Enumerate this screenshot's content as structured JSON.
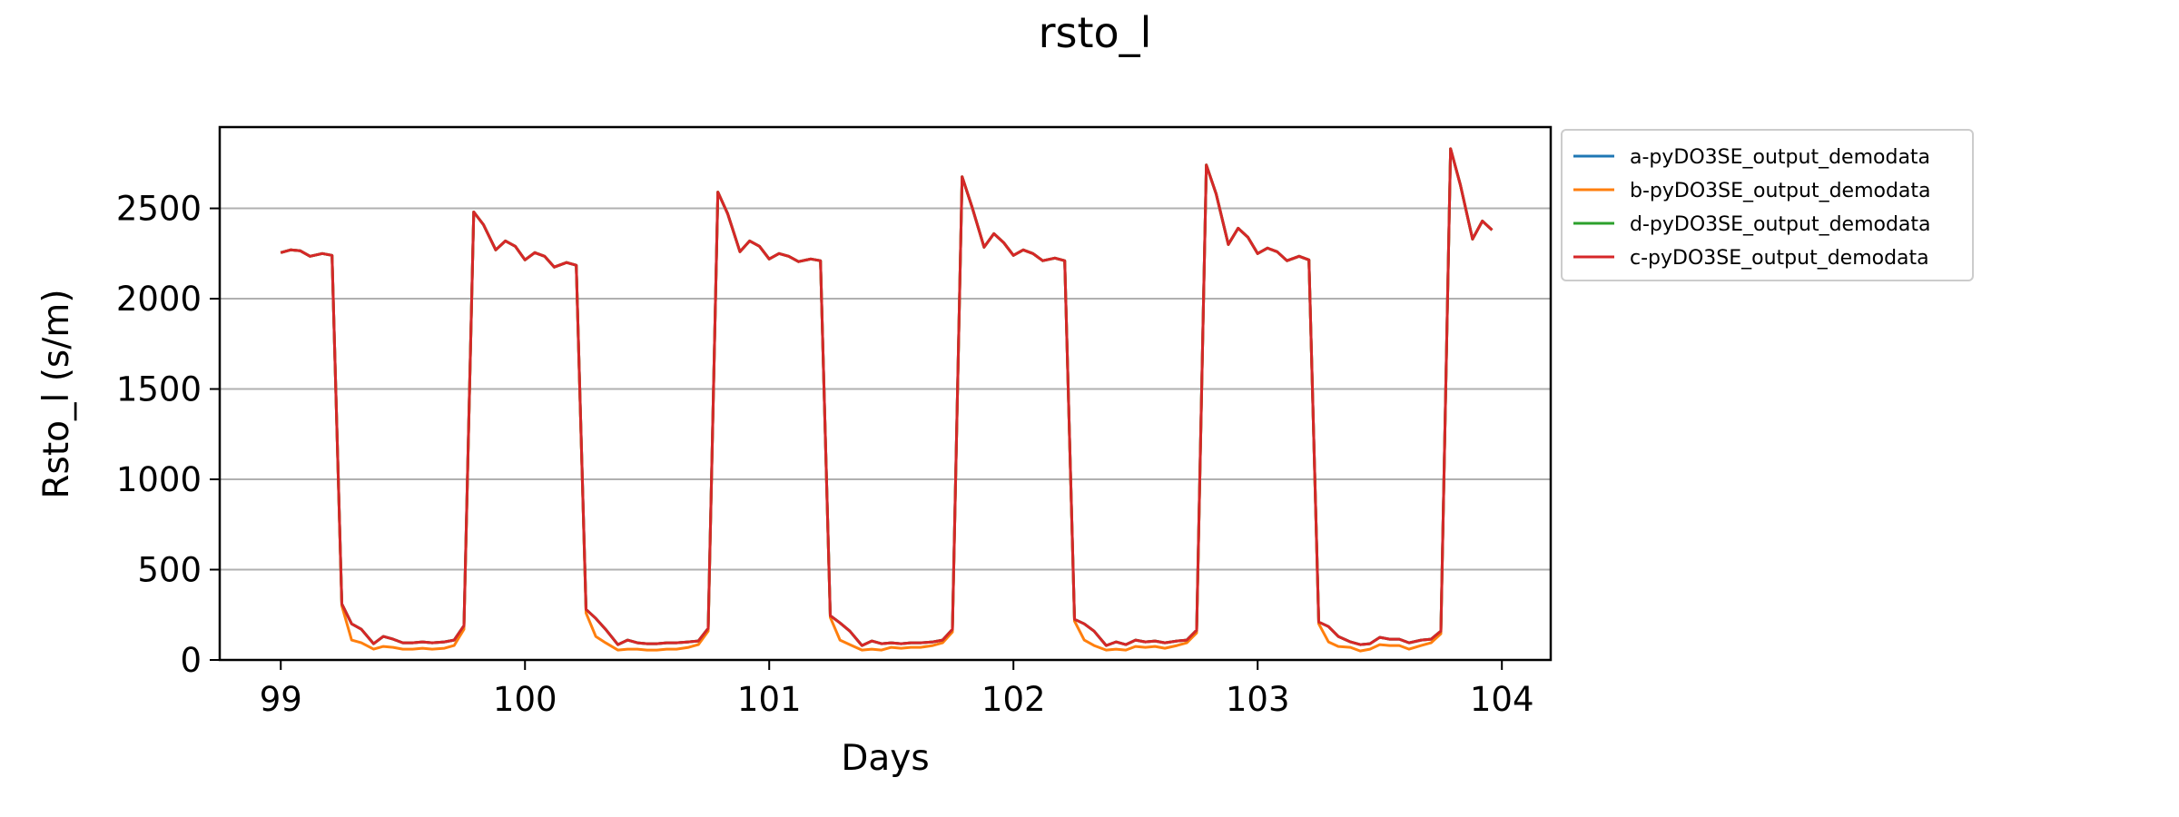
{
  "chart_data": {
    "type": "line",
    "title": "rsto_l",
    "xlabel": "Days",
    "ylabel": "Rsto_l (s/m)",
    "xlim": [
      98.75,
      104.2
    ],
    "ylim": [
      0,
      2950
    ],
    "xticks": [
      99,
      100,
      101,
      102,
      103,
      104
    ],
    "yticks": [
      0,
      500,
      1000,
      1500,
      2000,
      2500
    ],
    "grid": "horizontal",
    "legend_position": "outside-right-top",
    "series": [
      {
        "name": "a-pyDO3SE_output_demodata",
        "color": "#1f77b4",
        "x": [
          99.0,
          99.04,
          99.08,
          99.12,
          99.17,
          99.21,
          99.25,
          99.29,
          99.33,
          99.38,
          99.42,
          99.46,
          99.5,
          99.54,
          99.58,
          99.62,
          99.67,
          99.71,
          99.75,
          99.79,
          99.83,
          99.88,
          99.92,
          99.96,
          100.0,
          100.04,
          100.08,
          100.12,
          100.17,
          100.21,
          100.25,
          100.29,
          100.33,
          100.38,
          100.42,
          100.46,
          100.5,
          100.54,
          100.58,
          100.62,
          100.67,
          100.71,
          100.75,
          100.79,
          100.83,
          100.88,
          100.92,
          100.96,
          101.0,
          101.04,
          101.08,
          101.12,
          101.17,
          101.21,
          101.25,
          101.29,
          101.33,
          101.38,
          101.42,
          101.46,
          101.5,
          101.54,
          101.58,
          101.62,
          101.67,
          101.71,
          101.75,
          101.79,
          101.83,
          101.88,
          101.92,
          101.96,
          102.0,
          102.04,
          102.08,
          102.12,
          102.17,
          102.21,
          102.25,
          102.29,
          102.33,
          102.38,
          102.42,
          102.46,
          102.5,
          102.54,
          102.58,
          102.62,
          102.67,
          102.71,
          102.75,
          102.79,
          102.83,
          102.88,
          102.92,
          102.96,
          103.0,
          103.04,
          103.08,
          103.12,
          103.17,
          103.21,
          103.25,
          103.29,
          103.33,
          103.38,
          103.42,
          103.46,
          103.5,
          103.54,
          103.58,
          103.62,
          103.67,
          103.71,
          103.75,
          103.79,
          103.83,
          103.88,
          103.92,
          103.96
        ],
        "y": [
          2255,
          2270,
          2265,
          2235,
          2250,
          2240,
          310,
          200,
          170,
          90,
          130,
          115,
          95,
          95,
          100,
          95,
          100,
          110,
          190,
          2480,
          2410,
          2270,
          2320,
          2290,
          2215,
          2255,
          2235,
          2175,
          2200,
          2185,
          280,
          230,
          170,
          85,
          110,
          95,
          90,
          90,
          95,
          95,
          100,
          105,
          175,
          2590,
          2470,
          2260,
          2320,
          2290,
          2220,
          2250,
          2235,
          2205,
          2220,
          2210,
          245,
          205,
          160,
          80,
          105,
          90,
          95,
          90,
          95,
          95,
          100,
          110,
          170,
          2675,
          2510,
          2285,
          2360,
          2310,
          2240,
          2270,
          2250,
          2210,
          2225,
          2210,
          225,
          200,
          160,
          80,
          100,
          85,
          110,
          100,
          105,
          95,
          105,
          110,
          165,
          2740,
          2580,
          2300,
          2390,
          2340,
          2250,
          2280,
          2260,
          2210,
          2235,
          2215,
          210,
          185,
          130,
          100,
          85,
          90,
          125,
          115,
          115,
          95,
          110,
          115,
          160,
          2830,
          2630,
          2330,
          2430,
          2380
        ]
      },
      {
        "name": "b-pyDO3SE_output_demodata",
        "color": "#ff7f0e",
        "x": [
          99.0,
          99.04,
          99.08,
          99.12,
          99.17,
          99.21,
          99.25,
          99.29,
          99.33,
          99.38,
          99.42,
          99.46,
          99.5,
          99.54,
          99.58,
          99.62,
          99.67,
          99.71,
          99.75,
          99.79,
          99.83,
          99.88,
          99.92,
          99.96,
          100.0,
          100.04,
          100.08,
          100.12,
          100.17,
          100.21,
          100.25,
          100.29,
          100.33,
          100.38,
          100.42,
          100.46,
          100.5,
          100.54,
          100.58,
          100.62,
          100.67,
          100.71,
          100.75,
          100.79,
          100.83,
          100.88,
          100.92,
          100.96,
          101.0,
          101.04,
          101.08,
          101.12,
          101.17,
          101.21,
          101.25,
          101.29,
          101.33,
          101.38,
          101.42,
          101.46,
          101.5,
          101.54,
          101.58,
          101.62,
          101.67,
          101.71,
          101.75,
          101.79,
          101.83,
          101.88,
          101.92,
          101.96,
          102.0,
          102.04,
          102.08,
          102.12,
          102.17,
          102.21,
          102.25,
          102.29,
          102.33,
          102.38,
          102.42,
          102.46,
          102.5,
          102.54,
          102.58,
          102.62,
          102.67,
          102.71,
          102.75,
          102.79,
          102.83,
          102.88,
          102.92,
          102.96,
          103.0,
          103.04,
          103.08,
          103.12,
          103.17,
          103.21,
          103.25,
          103.29,
          103.33,
          103.38,
          103.42,
          103.46,
          103.5,
          103.54,
          103.58,
          103.62,
          103.67,
          103.71,
          103.75,
          103.79,
          103.83,
          103.88,
          103.92,
          103.96
        ],
        "y": [
          2255,
          2270,
          2265,
          2235,
          2250,
          2240,
          300,
          110,
          95,
          60,
          75,
          70,
          60,
          60,
          65,
          60,
          65,
          80,
          170,
          2480,
          2410,
          2270,
          2320,
          2290,
          2215,
          2255,
          2235,
          2175,
          2200,
          2185,
          260,
          130,
          95,
          55,
          60,
          60,
          55,
          55,
          60,
          60,
          70,
          85,
          160,
          2590,
          2470,
          2260,
          2320,
          2290,
          2220,
          2250,
          2235,
          2205,
          2220,
          2210,
          235,
          110,
          85,
          55,
          60,
          55,
          70,
          65,
          70,
          70,
          80,
          95,
          155,
          2675,
          2510,
          2285,
          2360,
          2310,
          2240,
          2270,
          2250,
          2210,
          2225,
          2210,
          215,
          110,
          80,
          55,
          60,
          55,
          75,
          70,
          75,
          65,
          80,
          95,
          150,
          2740,
          2580,
          2300,
          2390,
          2340,
          2250,
          2280,
          2260,
          2210,
          2235,
          2215,
          200,
          100,
          75,
          70,
          50,
          60,
          85,
          80,
          80,
          60,
          80,
          95,
          145,
          2830,
          2630,
          2330,
          2430,
          2380
        ]
      },
      {
        "name": "d-pyDO3SE_output_demodata",
        "color": "#2ca02c",
        "x": [
          99.0,
          99.04,
          99.08,
          99.12,
          99.17,
          99.21,
          99.25,
          99.29,
          99.33,
          99.38,
          99.42,
          99.46,
          99.5,
          99.54,
          99.58,
          99.62,
          99.67,
          99.71,
          99.75,
          99.79,
          99.83,
          99.88,
          99.92,
          99.96,
          100.0,
          100.04,
          100.08,
          100.12,
          100.17,
          100.21,
          100.25,
          100.29,
          100.33,
          100.38,
          100.42,
          100.46,
          100.5,
          100.54,
          100.58,
          100.62,
          100.67,
          100.71,
          100.75,
          100.79,
          100.83,
          100.88,
          100.92,
          100.96,
          101.0,
          101.04,
          101.08,
          101.12,
          101.17,
          101.21,
          101.25,
          101.29,
          101.33,
          101.38,
          101.42,
          101.46,
          101.5,
          101.54,
          101.58,
          101.62,
          101.67,
          101.71,
          101.75,
          101.79,
          101.83,
          101.88,
          101.92,
          101.96,
          102.0,
          102.04,
          102.08,
          102.12,
          102.17,
          102.21,
          102.25,
          102.29,
          102.33,
          102.38,
          102.42,
          102.46,
          102.5,
          102.54,
          102.58,
          102.62,
          102.67,
          102.71,
          102.75,
          102.79,
          102.83,
          102.88,
          102.92,
          102.96,
          103.0,
          103.04,
          103.08,
          103.12,
          103.17,
          103.21,
          103.25,
          103.29,
          103.33,
          103.38,
          103.42,
          103.46,
          103.5,
          103.54,
          103.58,
          103.62,
          103.67,
          103.71,
          103.75,
          103.79,
          103.83,
          103.88,
          103.92,
          103.96
        ],
        "y": [
          2255,
          2270,
          2265,
          2235,
          2250,
          2240,
          310,
          200,
          170,
          90,
          130,
          115,
          95,
          95,
          100,
          95,
          100,
          110,
          190,
          2480,
          2410,
          2270,
          2320,
          2290,
          2215,
          2255,
          2235,
          2175,
          2200,
          2185,
          280,
          230,
          170,
          85,
          110,
          95,
          90,
          90,
          95,
          95,
          100,
          105,
          175,
          2590,
          2470,
          2260,
          2320,
          2290,
          2220,
          2250,
          2235,
          2205,
          2220,
          2210,
          245,
          205,
          160,
          80,
          105,
          90,
          95,
          90,
          95,
          95,
          100,
          110,
          170,
          2675,
          2510,
          2285,
          2360,
          2310,
          2240,
          2270,
          2250,
          2210,
          2225,
          2210,
          225,
          200,
          160,
          80,
          100,
          85,
          110,
          100,
          105,
          95,
          105,
          110,
          165,
          2740,
          2580,
          2300,
          2390,
          2340,
          2250,
          2280,
          2260,
          2210,
          2235,
          2215,
          210,
          185,
          130,
          100,
          85,
          90,
          125,
          115,
          115,
          95,
          110,
          115,
          160,
          2830,
          2630,
          2330,
          2430,
          2380
        ]
      },
      {
        "name": "c-pyDO3SE_output_demodata",
        "color": "#d62728",
        "x": [
          99.0,
          99.04,
          99.08,
          99.12,
          99.17,
          99.21,
          99.25,
          99.29,
          99.33,
          99.38,
          99.42,
          99.46,
          99.5,
          99.54,
          99.58,
          99.62,
          99.67,
          99.71,
          99.75,
          99.79,
          99.83,
          99.88,
          99.92,
          99.96,
          100.0,
          100.04,
          100.08,
          100.12,
          100.17,
          100.21,
          100.25,
          100.29,
          100.33,
          100.38,
          100.42,
          100.46,
          100.5,
          100.54,
          100.58,
          100.62,
          100.67,
          100.71,
          100.75,
          100.79,
          100.83,
          100.88,
          100.92,
          100.96,
          101.0,
          101.04,
          101.08,
          101.12,
          101.17,
          101.21,
          101.25,
          101.29,
          101.33,
          101.38,
          101.42,
          101.46,
          101.5,
          101.54,
          101.58,
          101.62,
          101.67,
          101.71,
          101.75,
          101.79,
          101.83,
          101.88,
          101.92,
          101.96,
          102.0,
          102.04,
          102.08,
          102.12,
          102.17,
          102.21,
          102.25,
          102.29,
          102.33,
          102.38,
          102.42,
          102.46,
          102.5,
          102.54,
          102.58,
          102.62,
          102.67,
          102.71,
          102.75,
          102.79,
          102.83,
          102.88,
          102.92,
          102.96,
          103.0,
          103.04,
          103.08,
          103.12,
          103.17,
          103.21,
          103.25,
          103.29,
          103.33,
          103.38,
          103.42,
          103.46,
          103.5,
          103.54,
          103.58,
          103.62,
          103.67,
          103.71,
          103.75,
          103.79,
          103.83,
          103.88,
          103.92,
          103.96
        ],
        "y": [
          2255,
          2270,
          2265,
          2235,
          2250,
          2240,
          310,
          200,
          170,
          90,
          130,
          115,
          95,
          95,
          100,
          95,
          100,
          110,
          190,
          2480,
          2410,
          2270,
          2320,
          2290,
          2215,
          2255,
          2235,
          2175,
          2200,
          2185,
          280,
          230,
          170,
          85,
          110,
          95,
          90,
          90,
          95,
          95,
          100,
          105,
          175,
          2590,
          2470,
          2260,
          2320,
          2290,
          2220,
          2250,
          2235,
          2205,
          2220,
          2210,
          245,
          205,
          160,
          80,
          105,
          90,
          95,
          90,
          95,
          95,
          100,
          110,
          170,
          2675,
          2510,
          2285,
          2360,
          2310,
          2240,
          2270,
          2250,
          2210,
          2225,
          2210,
          225,
          200,
          160,
          80,
          100,
          85,
          110,
          100,
          105,
          95,
          105,
          110,
          165,
          2740,
          2580,
          2300,
          2390,
          2340,
          2250,
          2280,
          2260,
          2210,
          2235,
          2215,
          210,
          185,
          130,
          100,
          85,
          90,
          125,
          115,
          115,
          95,
          110,
          115,
          160,
          2830,
          2630,
          2330,
          2430,
          2380
        ]
      }
    ]
  }
}
